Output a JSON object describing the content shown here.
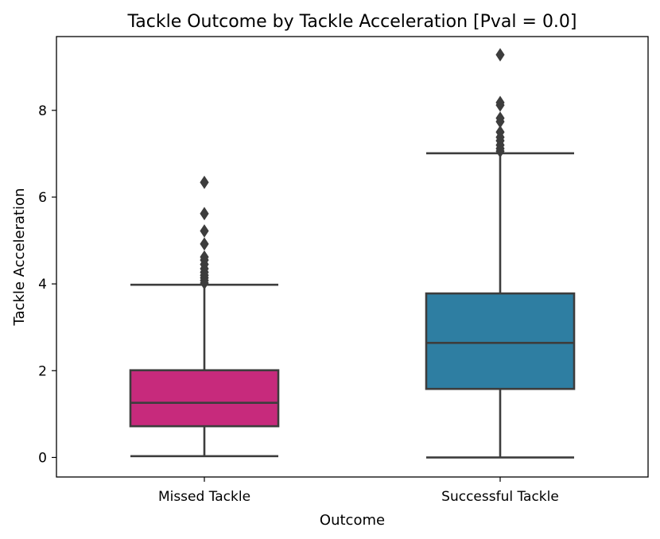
{
  "chart_data": {
    "type": "box",
    "title": "Tackle Outcome by Tackle Acceleration [Pval = 0.0]",
    "xlabel": "Outcome",
    "ylabel": "Tackle Acceleration",
    "categories": [
      "Missed Tackle",
      "Successful Tackle"
    ],
    "ylim": [
      -0.45,
      9.7
    ],
    "yticks": [
      0,
      2,
      4,
      6,
      8
    ],
    "grid": false,
    "boxes": [
      {
        "category": "Missed Tackle",
        "color": "#c72a7c",
        "whisker_low": 0.03,
        "q1": 0.72,
        "median": 1.26,
        "q3": 2.01,
        "whisker_high": 3.98,
        "outliers": [
          4.02,
          4.08,
          4.14,
          4.2,
          4.27,
          4.35,
          4.45,
          4.55,
          4.62,
          4.92,
          5.22,
          5.62,
          6.34
        ]
      },
      {
        "category": "Successful Tackle",
        "color": "#2e7ea2",
        "whisker_low": 0.0,
        "q1": 1.58,
        "median": 2.64,
        "q3": 3.78,
        "whisker_high": 7.01,
        "outliers": [
          7.06,
          7.12,
          7.2,
          7.3,
          7.38,
          7.5,
          7.74,
          7.82,
          8.12,
          8.18,
          9.28
        ]
      }
    ],
    "edge_color": "#3d3d3d"
  }
}
